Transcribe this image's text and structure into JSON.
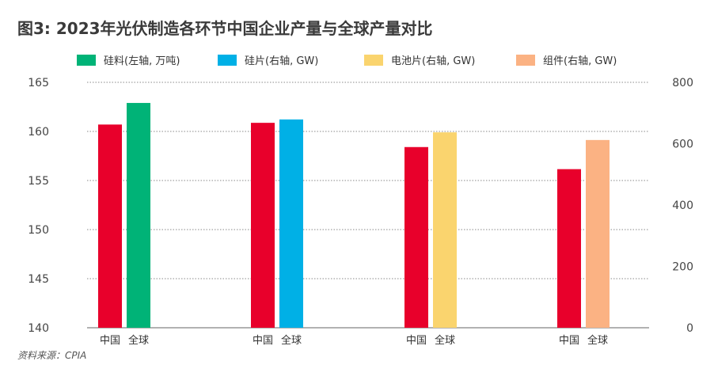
{
  "title": "图3: 2023年光伏制造各环节中国企业产量与全球产量对比",
  "source": "资料来源：CPIA",
  "colors": {
    "china": "#e8002b",
    "silicon_material": "#00b377",
    "wafer": "#00b0e6",
    "cell": "#fad46e",
    "module": "#fbb283"
  },
  "chart_data": {
    "type": "bar",
    "legend": [
      "硅料(左轴, 万吨)",
      "硅片(右轴, GW)",
      "电池片(右轴, GW)",
      "组件(右轴, GW)"
    ],
    "legend_position": "top",
    "left_axis": {
      "ylim": [
        140,
        165
      ],
      "ticks": [
        "140",
        "145",
        "150",
        "155",
        "160",
        "165"
      ]
    },
    "right_axis": {
      "ylim": [
        0,
        800
      ],
      "ticks": [
        "0",
        "200",
        "400",
        "600",
        "800"
      ]
    },
    "grid": true,
    "groups": [
      {
        "segment": "硅料",
        "axis": "left",
        "categories": [
          "中国",
          "全球"
        ],
        "values": [
          160.7,
          162.9
        ]
      },
      {
        "segment": "硅片",
        "axis": "right",
        "categories": [
          "中国",
          "全球"
        ],
        "values": [
          668,
          679
        ]
      },
      {
        "segment": "电池片",
        "axis": "right",
        "categories": [
          "中国",
          "全球"
        ],
        "values": [
          589,
          637
        ]
      },
      {
        "segment": "组件",
        "axis": "right",
        "categories": [
          "中国",
          "全球"
        ],
        "values": [
          517,
          612
        ]
      }
    ]
  }
}
